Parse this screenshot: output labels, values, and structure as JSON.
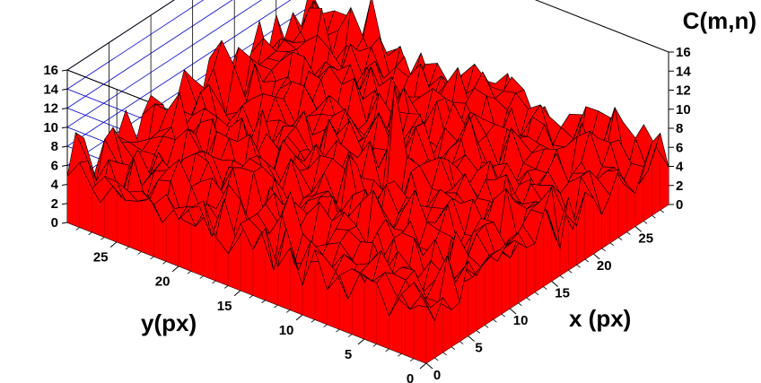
{
  "chart_data": {
    "type": "surface3d",
    "xlabel": "x (px)",
    "ylabel": "y(px)",
    "zlabel": "C(m,n)",
    "x_ticks": [
      "0",
      "5",
      "10",
      "15",
      "20",
      "25"
    ],
    "y_ticks": [
      "0",
      "5",
      "10",
      "15",
      "20",
      "25"
    ],
    "z_ticks": [
      "0",
      "2",
      "4",
      "6",
      "8",
      "10",
      "12",
      "14",
      "16"
    ],
    "xlim": [
      0,
      29
    ],
    "ylim": [
      0,
      29
    ],
    "zlim": [
      0,
      16
    ],
    "grid": true,
    "surface_color": "#ff0000",
    "mesh_color": "#000000",
    "grid_color": "#0000cc",
    "surface_description": "noisy correlation surface, values mostly 2-9, single sharp peak",
    "peak": {
      "x": 14,
      "y": 12,
      "z": 15
    }
  }
}
